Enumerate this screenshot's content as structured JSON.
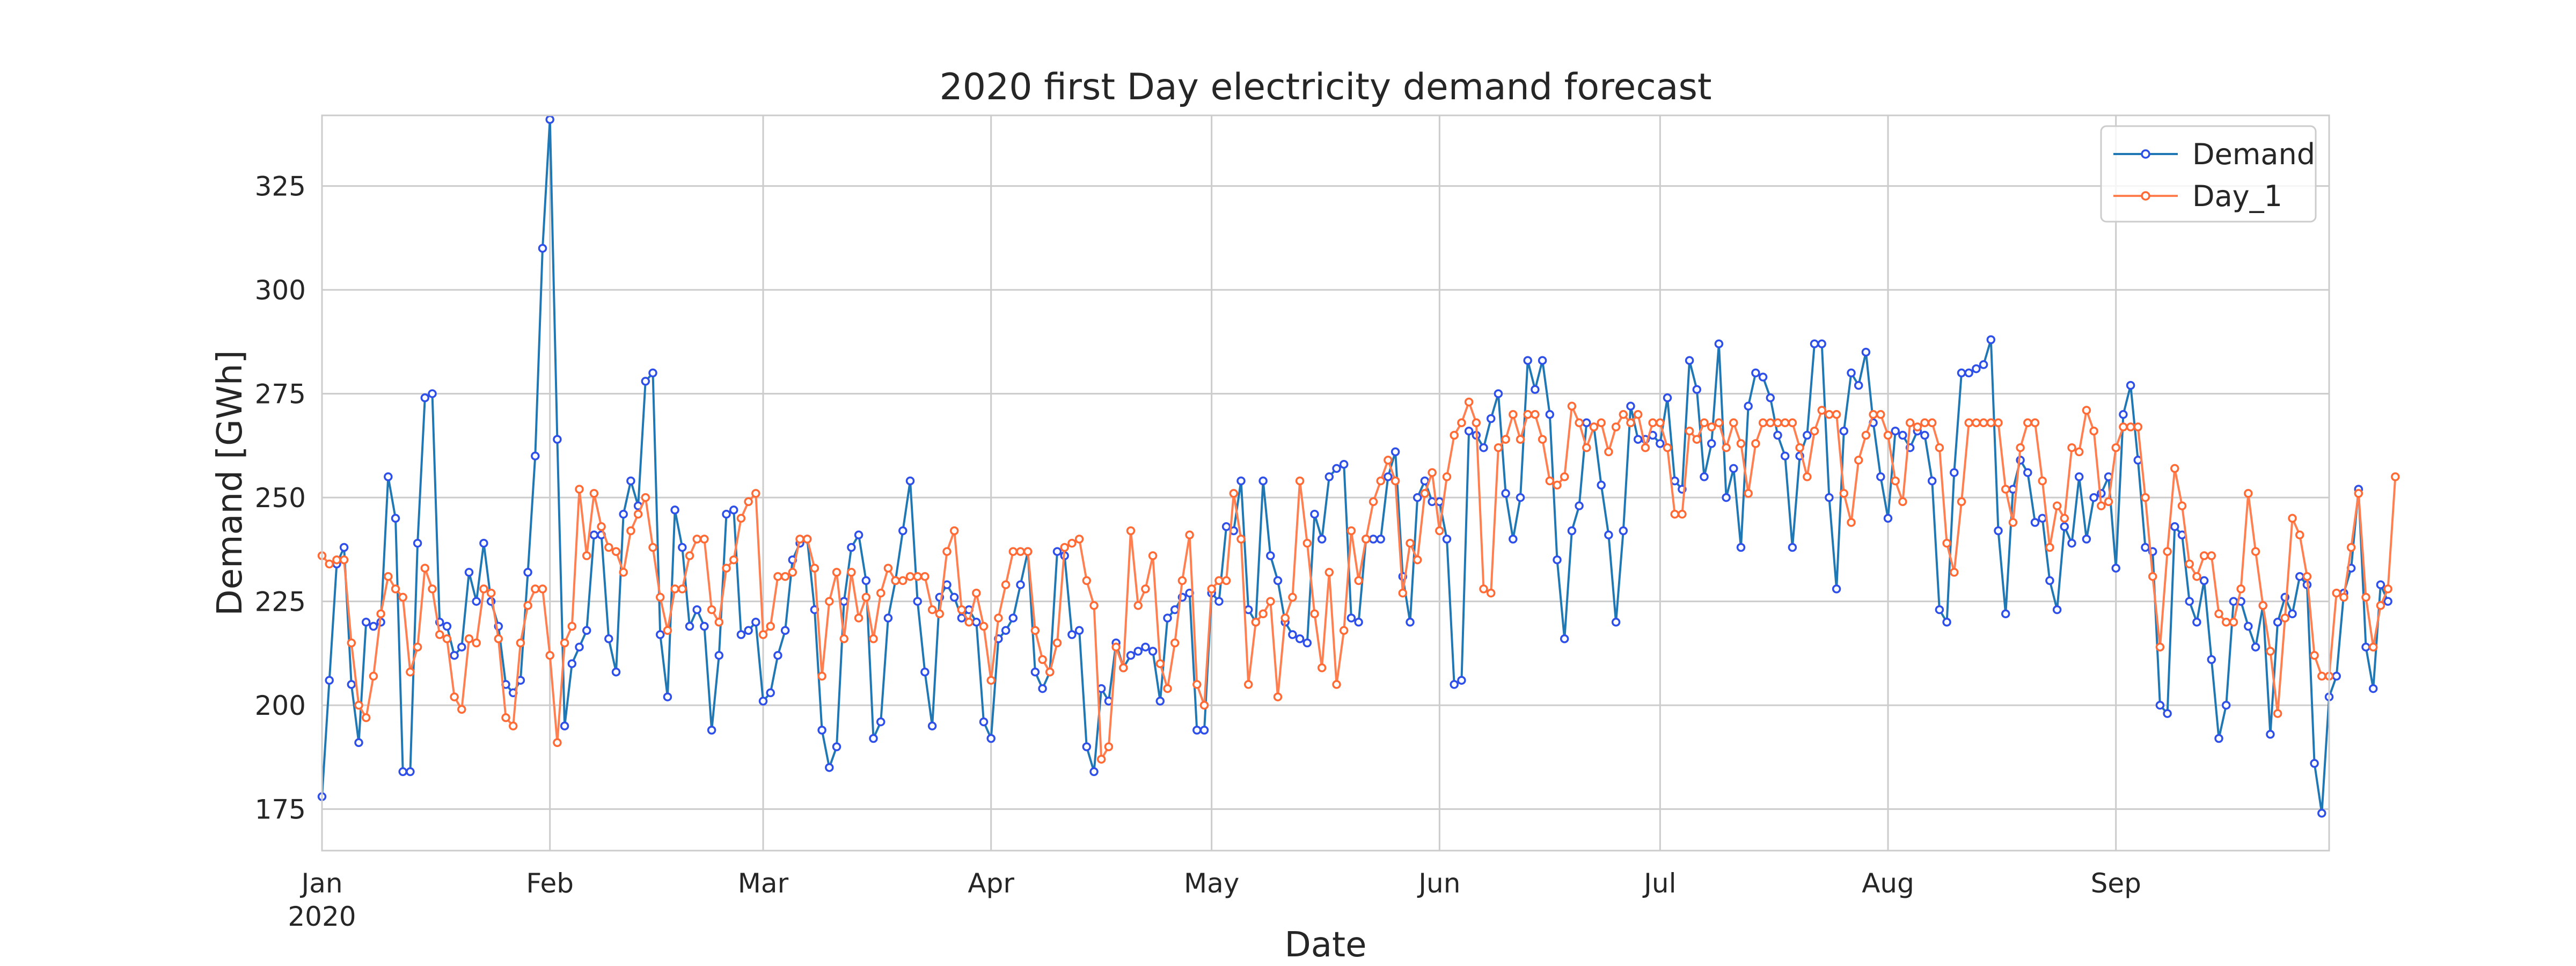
{
  "chart_data": {
    "type": "line",
    "title": "2020 first Day electricity demand forecast",
    "xlabel": "Date",
    "ylabel": "Demand [GWh]",
    "x_start": "2020-01-01",
    "x_end": "2020-09-30",
    "xlim": [
      "2020-01-01",
      "2020-09-30"
    ],
    "ylim": [
      165,
      342
    ],
    "grid": true,
    "legend_position": "top-right",
    "y_ticks": [
      {
        "value": 175,
        "label": "175"
      },
      {
        "value": 200,
        "label": "200"
      },
      {
        "value": 225,
        "label": "225"
      },
      {
        "value": 250,
        "label": "250"
      },
      {
        "value": 275,
        "label": "275"
      },
      {
        "value": 300,
        "label": "300"
      },
      {
        "value": 325,
        "label": "325"
      }
    ],
    "x_ticks": [
      {
        "date": "2020-01-01",
        "label": "Jan",
        "sublabel": "2020"
      },
      {
        "date": "2020-02-01",
        "label": "Feb",
        "sublabel": ""
      },
      {
        "date": "2020-03-01",
        "label": "Mar",
        "sublabel": ""
      },
      {
        "date": "2020-04-01",
        "label": "Apr",
        "sublabel": ""
      },
      {
        "date": "2020-05-01",
        "label": "May",
        "sublabel": ""
      },
      {
        "date": "2020-06-01",
        "label": "Jun",
        "sublabel": ""
      },
      {
        "date": "2020-07-01",
        "label": "Jul",
        "sublabel": ""
      },
      {
        "date": "2020-08-01",
        "label": "Aug",
        "sublabel": ""
      },
      {
        "date": "2020-09-01",
        "label": "Sep",
        "sublabel": ""
      }
    ],
    "series": [
      {
        "name": "Demand",
        "color": "#1f77b4",
        "marker_edge_color": "#2f50e8",
        "values": [
          178,
          206,
          234,
          238,
          205,
          191,
          220,
          219,
          220,
          255,
          245,
          184,
          184,
          239,
          274,
          275,
          220,
          219,
          212,
          214,
          232,
          225,
          239,
          225,
          219,
          205,
          203,
          206,
          232,
          260,
          310,
          341,
          264,
          195,
          210,
          214,
          218,
          241,
          241,
          216,
          208,
          246,
          254,
          248,
          278,
          280,
          217,
          202,
          247,
          238,
          219,
          223,
          219,
          194,
          212,
          246,
          247,
          217,
          218,
          220,
          201,
          203,
          212,
          218,
          235,
          239,
          240,
          223,
          194,
          185,
          190,
          225,
          238,
          241,
          230,
          192,
          196,
          221,
          230,
          242,
          254,
          225,
          208,
          195,
          226,
          229,
          226,
          221,
          223,
          220,
          196,
          192,
          216,
          218,
          221,
          229,
          237,
          208,
          204,
          208,
          237,
          236,
          217,
          218,
          190,
          184,
          204,
          201,
          215,
          209,
          212,
          213,
          214,
          213,
          201,
          221,
          223,
          226,
          227,
          194,
          194,
          227,
          225,
          243,
          242,
          254,
          223,
          220,
          254,
          236,
          230,
          220,
          217,
          216,
          215,
          246,
          240,
          255,
          257,
          258,
          221,
          220,
          240,
          240,
          240,
          255,
          261,
          231,
          220,
          250,
          254,
          249,
          249,
          240,
          205,
          206,
          266,
          265,
          262,
          269,
          275,
          251,
          240,
          250,
          283,
          276,
          283,
          270,
          235,
          216,
          242,
          248,
          268,
          267,
          253,
          241,
          220,
          242,
          272,
          264,
          264,
          265,
          263,
          274,
          254,
          252,
          283,
          276,
          255,
          263,
          287,
          250,
          257,
          238,
          272,
          280,
          279,
          274,
          265,
          260,
          238,
          260,
          265,
          287,
          287,
          250,
          228,
          266,
          280,
          277,
          285,
          268,
          255,
          245,
          266,
          265,
          262,
          266,
          265,
          254,
          223,
          220,
          256,
          280,
          280,
          281,
          282,
          288,
          242,
          222,
          252,
          259,
          256,
          244,
          245,
          230,
          223,
          243,
          239,
          255,
          240,
          250,
          251,
          255,
          233,
          270,
          277,
          259,
          238,
          237,
          200,
          198,
          243,
          241,
          225,
          220,
          230,
          211,
          192,
          200,
          225,
          225,
          219,
          214,
          224,
          193,
          220,
          226,
          222,
          231,
          229,
          186,
          174,
          202,
          207,
          227,
          233,
          252,
          214,
          204,
          229,
          225
        ]
      },
      {
        "name": "Day_1",
        "color": "#ff7f50",
        "marker_edge_color": "#ff6a35",
        "values": [
          236,
          234,
          235,
          235,
          215,
          200,
          197,
          207,
          222,
          231,
          228,
          226,
          208,
          214,
          233,
          228,
          217,
          216,
          202,
          199,
          216,
          215,
          228,
          227,
          216,
          197,
          195,
          215,
          224,
          228,
          228,
          212,
          191,
          215,
          219,
          252,
          236,
          251,
          243,
          238,
          237,
          232,
          242,
          246,
          250,
          238,
          226,
          218,
          228,
          228,
          236,
          240,
          240,
          223,
          220,
          233,
          235,
          245,
          249,
          251,
          217,
          219,
          231,
          231,
          232,
          240,
          240,
          233,
          207,
          225,
          232,
          216,
          232,
          221,
          226,
          216,
          227,
          233,
          230,
          230,
          231,
          231,
          231,
          223,
          222,
          237,
          242,
          223,
          220,
          227,
          219,
          206,
          221,
          229,
          237,
          237,
          237,
          218,
          211,
          208,
          215,
          238,
          239,
          240,
          230,
          224,
          187,
          190,
          214,
          209,
          242,
          224,
          228,
          236,
          210,
          204,
          215,
          230,
          241,
          205,
          200,
          228,
          230,
          230,
          251,
          240,
          205,
          220,
          222,
          225,
          202,
          221,
          226,
          254,
          239,
          222,
          209,
          232,
          205,
          218,
          242,
          230,
          240,
          249,
          254,
          259,
          254,
          227,
          239,
          235,
          251,
          256,
          242,
          255,
          265,
          268,
          273,
          268,
          228,
          227,
          262,
          264,
          270,
          264,
          270,
          270,
          264,
          254,
          253,
          255,
          272,
          268,
          262,
          267,
          268,
          261,
          267,
          270,
          268,
          270,
          262,
          268,
          268,
          262,
          246,
          246,
          266,
          264,
          268,
          267,
          268,
          262,
          268,
          263,
          251,
          263,
          268,
          268,
          268,
          268,
          268,
          262,
          255,
          266,
          271,
          270,
          270,
          251,
          244,
          259,
          265,
          270,
          270,
          265,
          254,
          249,
          268,
          267,
          268,
          268,
          262,
          239,
          232,
          249,
          268,
          268,
          268,
          268,
          268,
          252,
          244,
          262,
          268,
          268,
          254,
          238,
          248,
          245,
          262,
          261,
          271,
          266,
          248,
          249,
          262,
          267,
          267,
          267,
          250,
          231,
          214,
          237,
          257,
          248,
          234,
          231,
          236,
          236,
          222,
          220,
          220,
          228,
          251,
          237,
          224,
          213,
          198,
          221,
          245,
          241,
          231,
          212,
          207,
          207,
          227,
          226,
          238,
          251,
          226,
          214,
          224,
          228,
          255
        ]
      }
    ]
  }
}
